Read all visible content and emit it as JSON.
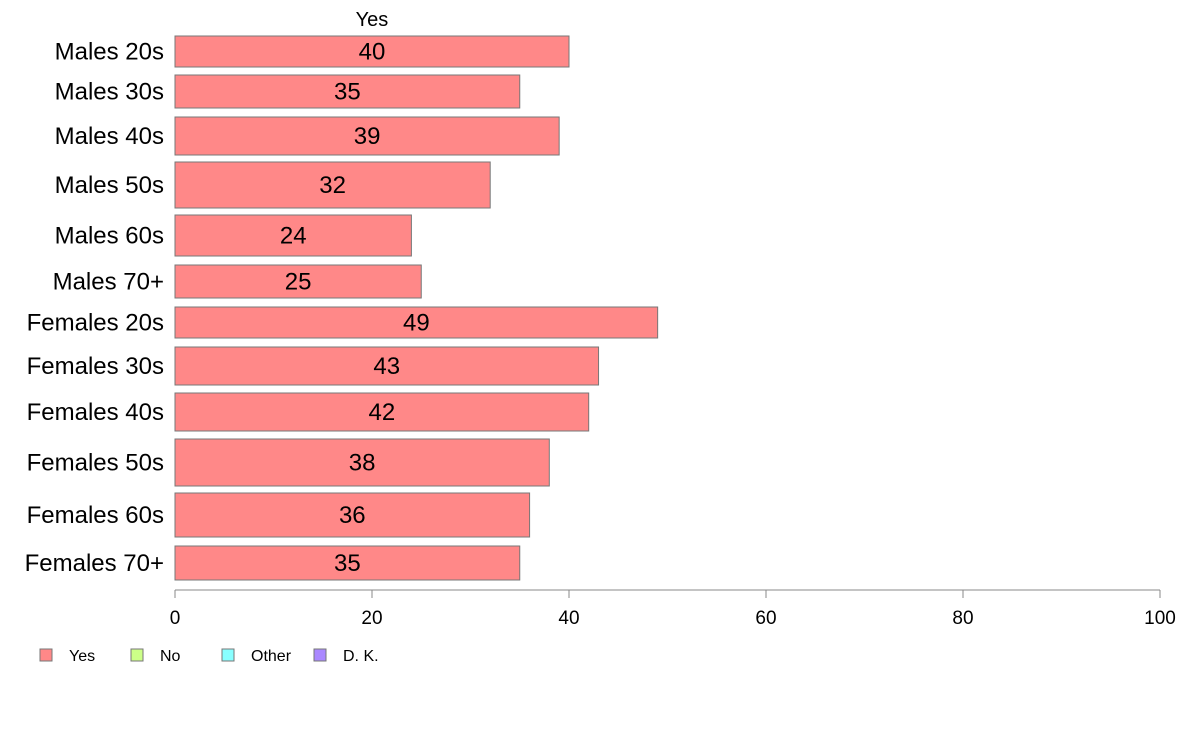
{
  "chart_data": {
    "type": "bar",
    "orientation": "horizontal",
    "top_label": "Yes",
    "categories": [
      "Males 20s",
      "Males 30s",
      "Males 40s",
      "Males 50s",
      "Males 60s",
      "Males 70+",
      "Females 20s",
      "Females 30s",
      "Females 40s",
      "Females 50s",
      "Females 60s",
      "Females 70+"
    ],
    "series": [
      {
        "name": "Yes",
        "color": "#ff8888",
        "values": [
          40,
          35,
          39,
          32,
          24,
          25,
          49,
          43,
          42,
          38,
          36,
          35
        ]
      }
    ],
    "xlim": [
      0,
      100
    ],
    "xticks": [
      0,
      20,
      40,
      60,
      80,
      100
    ],
    "grid": false,
    "legend": {
      "placement": "bottom-left",
      "items": [
        {
          "label": "Yes",
          "color": "#ff8888"
        },
        {
          "label": "No",
          "color": "#ccff88"
        },
        {
          "label": "Other",
          "color": "#88ffff"
        },
        {
          "label": "D. K.",
          "color": "#aa88ff"
        }
      ]
    }
  }
}
